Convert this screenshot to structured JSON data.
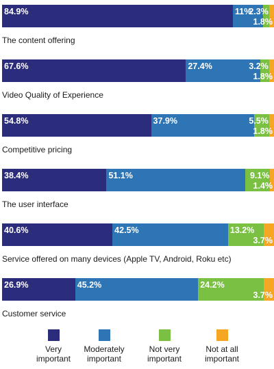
{
  "chart_data": {
    "type": "bar",
    "orientation": "horizontal",
    "stacked": true,
    "categories": [
      "The content offering",
      "Video Quality of  Experience",
      "Competitive pricing",
      "The user interface",
      "Service offered on many devices (Apple TV, Android, Roku etc)",
      "Customer service"
    ],
    "series": [
      {
        "name": "Very important",
        "color": "#2b2c7c",
        "values": [
          84.9,
          67.6,
          54.8,
          38.4,
          40.6,
          26.9
        ]
      },
      {
        "name": "Moderately important",
        "color": "#2e75b6",
        "values": [
          11,
          27.4,
          37.9,
          51.1,
          42.5,
          45.2
        ]
      },
      {
        "name": "Not very important",
        "color": "#7ac143",
        "values": [
          2.3,
          3.2,
          5.5,
          9.1,
          13.2,
          24.2
        ]
      },
      {
        "name": "Not at all important",
        "color": "#f5a623",
        "values": [
          1.8,
          1.8,
          1.8,
          1.4,
          3.7,
          3.7
        ]
      }
    ],
    "value_labels": [
      [
        "84.9%",
        "11%",
        "2.3%",
        "1.8%"
      ],
      [
        "67.6%",
        "27.4%",
        "3.2%",
        "1.8%"
      ],
      [
        "54.8%",
        "37.9%",
        "5.5%",
        "1.8%"
      ],
      [
        "38.4%",
        "51.1%",
        "9.1%",
        "1.4%"
      ],
      [
        "40.6%",
        "42.5%",
        "13.2%",
        "3.7%"
      ],
      [
        "26.9%",
        "45.2%",
        "24.2%",
        "3.7%"
      ]
    ],
    "legend_labels": [
      [
        "Very",
        "important"
      ],
      [
        "Moderately",
        "important"
      ],
      [
        "Not very",
        "important"
      ],
      [
        "Not at all",
        "important"
      ]
    ],
    "xlim": [
      0,
      100
    ],
    "grid": false,
    "legend_position": "bottom"
  }
}
